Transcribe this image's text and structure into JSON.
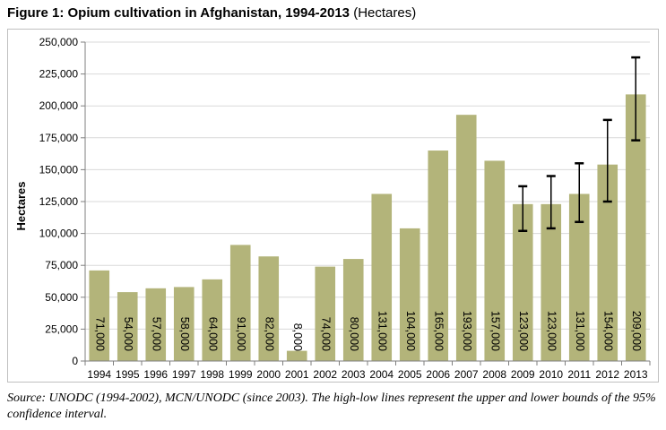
{
  "figure": {
    "title_bold": "Figure 1: Opium cultivation in Afghanistan, 1994-2013",
    "title_unit": "(Hectares)",
    "caption": "Source: UNODC (1994-2002), MCN/UNODC (since 2003). The high-low lines represent the upper and lower bounds of the 95% confidence interval."
  },
  "chart_data": {
    "type": "bar",
    "title": "Figure 1: Opium cultivation in Afghanistan, 1994-2013 (Hectares)",
    "xlabel": "",
    "ylabel": "Hectares",
    "ylim": [
      0,
      250000
    ],
    "yticks": [
      0,
      25000,
      50000,
      75000,
      100000,
      125000,
      150000,
      175000,
      200000,
      225000,
      250000
    ],
    "ytick_labels": [
      "0",
      "25,000",
      "50,000",
      "75,000",
      "100,000",
      "125,000",
      "150,000",
      "175,000",
      "200,000",
      "225,000",
      "250,000"
    ],
    "grid": true,
    "legend": "none",
    "bar_color": "#b3b47a",
    "categories": [
      "1994",
      "1995",
      "1996",
      "1997",
      "1998",
      "1999",
      "2000",
      "2001",
      "2002",
      "2003",
      "2004",
      "2005",
      "2006",
      "2007",
      "2008",
      "2009",
      "2010",
      "2011",
      "2012",
      "2013"
    ],
    "values": [
      71000,
      54000,
      57000,
      58000,
      64000,
      91000,
      82000,
      8000,
      74000,
      80000,
      131000,
      104000,
      165000,
      193000,
      157000,
      123000,
      123000,
      131000,
      154000,
      209000
    ],
    "data_labels": [
      "71,000",
      "54,000",
      "57,000",
      "58,000",
      "64,000",
      "91,000",
      "82,000",
      "8,000",
      "74,000",
      "80,000",
      "131,000",
      "104,000",
      "165,000",
      "193,000",
      "157,000",
      "123,000",
      "123,000",
      "131,000",
      "154,000",
      "209,000"
    ],
    "error_bars": [
      {
        "category": "2009",
        "low": 102000,
        "high": 137000
      },
      {
        "category": "2010",
        "low": 104000,
        "high": 145000
      },
      {
        "category": "2011",
        "low": 109000,
        "high": 155000
      },
      {
        "category": "2012",
        "low": 125000,
        "high": 189000
      },
      {
        "category": "2013",
        "low": 173000,
        "high": 238000
      }
    ]
  }
}
